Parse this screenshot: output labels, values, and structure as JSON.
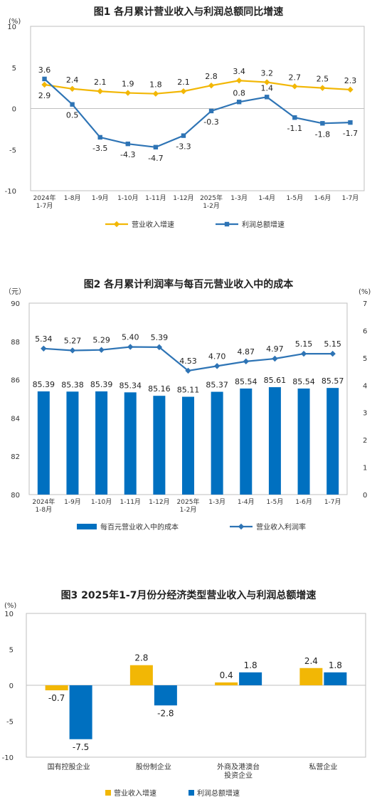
{
  "chart_data": [
    {
      "type": "line",
      "title": "图1  各月累计营业收入与利润总额同比增速",
      "unit": "(%)",
      "ylim": [
        -10,
        10
      ],
      "yticks": [
        -10,
        -5,
        0,
        5,
        10
      ],
      "categories": [
        "2024年\n1-7月",
        "1-8月",
        "1-9月",
        "1-10月",
        "1-11月",
        "1-12月",
        "2025年\n1-2月",
        "1-3月",
        "1-4月",
        "1-5月",
        "1-6月",
        "1-7月"
      ],
      "series": [
        {
          "name": "营业收入增速",
          "color": "#f2b705",
          "marker": "diamond",
          "values": [
            2.9,
            2.4,
            2.1,
            1.9,
            1.8,
            2.1,
            2.8,
            3.4,
            3.2,
            2.7,
            2.5,
            2.3
          ],
          "labels": [
            "2.9",
            "2.4",
            "2.1",
            "1.9",
            "1.8",
            "2.1",
            "2.8",
            "3.4",
            "3.2",
            "2.7",
            "2.5",
            "2.3"
          ]
        },
        {
          "name": "利润总额增速",
          "color": "#2e74b5",
          "marker": "square",
          "values": [
            3.6,
            0.5,
            -3.5,
            -4.3,
            -4.7,
            -3.3,
            -0.3,
            0.8,
            1.4,
            -1.1,
            -1.8,
            -1.7
          ],
          "labels": [
            "3.6",
            "0.5",
            "-3.5",
            "-4.3",
            "-4.7",
            "-3.3",
            "-0.3",
            "0.8",
            "1.4",
            "-1.1",
            "-1.8",
            "-1.7"
          ]
        }
      ],
      "grid": false,
      "legend": "bottom"
    },
    {
      "type": "bar",
      "title": "图2  各月累计利润率与每百元营业收入中的成本",
      "left_unit": "（元）",
      "right_unit": "(%)",
      "ylim": [
        80,
        90
      ],
      "yticks": [
        80,
        82,
        84,
        86,
        88,
        90
      ],
      "y2lim": [
        0,
        7
      ],
      "y2ticks": [
        0,
        1,
        2,
        3,
        4,
        5,
        6,
        7
      ],
      "categories": [
        "2024年\n1-8月",
        "1-9月",
        "1-10月",
        "1-11月",
        "1-12月",
        "2025年\n1-2月",
        "1-3月",
        "1-4月",
        "1-5月",
        "1-6月",
        "1-7月"
      ],
      "series": [
        {
          "name": "每百元营业收入中的成本",
          "kind": "bar",
          "axis": "left",
          "color": "#0070c0",
          "values": [
            85.39,
            85.38,
            85.39,
            85.34,
            85.16,
            85.11,
            85.37,
            85.54,
            85.61,
            85.54,
            85.57
          ],
          "labels": [
            "85.39",
            "85.38",
            "85.39",
            "85.34",
            "85.16",
            "85.11",
            "85.37",
            "85.54",
            "85.61",
            "85.54",
            "85.57"
          ]
        },
        {
          "name": "营业收入利润率",
          "kind": "line",
          "axis": "right",
          "color": "#2e74b5",
          "marker": "diamond",
          "values": [
            5.34,
            5.27,
            5.29,
            5.4,
            5.39,
            4.53,
            4.7,
            4.87,
            4.97,
            5.15,
            5.15
          ],
          "labels": [
            "5.34",
            "5.27",
            "5.29",
            "5.40",
            "5.39",
            "4.53",
            "4.70",
            "4.87",
            "4.97",
            "5.15",
            "5.15"
          ]
        }
      ],
      "grid": false,
      "legend": "bottom"
    },
    {
      "type": "bar",
      "title": "图3  2025年1-7月份分经济类型营业收入与利润总额增速",
      "unit": "(%)",
      "ylim": [
        -10,
        10
      ],
      "yticks": [
        -10,
        -5,
        0,
        5,
        10
      ],
      "categories": [
        "国有控股企业",
        "股份制企业",
        "外商及港澳台\n投资企业",
        "私营企业"
      ],
      "series": [
        {
          "name": "营业收入增速",
          "color": "#f2b705",
          "values": [
            -0.7,
            2.8,
            0.4,
            2.4
          ],
          "labels": [
            "-0.7",
            "2.8",
            "0.4",
            "2.4"
          ]
        },
        {
          "name": "利润总额增速",
          "color": "#0070c0",
          "values": [
            -7.5,
            -2.8,
            1.8,
            1.8
          ],
          "labels": [
            "-7.5",
            "-2.8",
            "1.8",
            "1.8"
          ]
        }
      ],
      "grid": false,
      "legend": "bottom"
    }
  ]
}
